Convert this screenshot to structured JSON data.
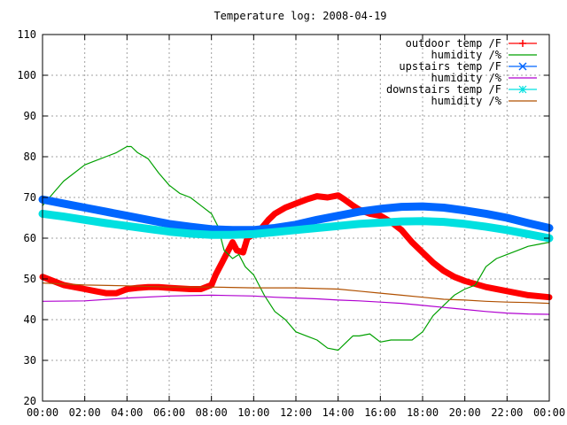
{
  "chart_data": {
    "type": "line",
    "title": "Temperature log: 2008-04-19",
    "xlabel": "",
    "ylabel": "",
    "x_ticks": [
      "00:00",
      "02:00",
      "04:00",
      "06:00",
      "08:00",
      "10:00",
      "12:00",
      "14:00",
      "16:00",
      "18:00",
      "20:00",
      "22:00",
      "00:00"
    ],
    "xlim_hours": [
      0,
      24
    ],
    "ylim": [
      20,
      110
    ],
    "y_ticks": [
      20,
      30,
      40,
      50,
      60,
      70,
      80,
      90,
      100,
      110
    ],
    "grid": true,
    "legend_position": "top-right",
    "series": [
      {
        "name": "outdoor temp /F",
        "color": "#ff0000",
        "marker": "plus",
        "points": [
          [
            0,
            50.5
          ],
          [
            0.5,
            49.5
          ],
          [
            1,
            48.5
          ],
          [
            1.5,
            48
          ],
          [
            2,
            47.5
          ],
          [
            2.5,
            47
          ],
          [
            3,
            46.5
          ],
          [
            3.5,
            46.5
          ],
          [
            4,
            47.5
          ],
          [
            4.5,
            47.8
          ],
          [
            5,
            48
          ],
          [
            5.5,
            48
          ],
          [
            6,
            47.8
          ],
          [
            7,
            47.5
          ],
          [
            7.5,
            47.5
          ],
          [
            8,
            48.5
          ],
          [
            8.2,
            51
          ],
          [
            8.5,
            54
          ],
          [
            8.8,
            57
          ],
          [
            9,
            59
          ],
          [
            9.2,
            57
          ],
          [
            9.5,
            56.5
          ],
          [
            9.7,
            60
          ],
          [
            10,
            61
          ],
          [
            10.3,
            62
          ],
          [
            10.7,
            64.5
          ],
          [
            11,
            66
          ],
          [
            11.5,
            67.5
          ],
          [
            12,
            68.5
          ],
          [
            12.5,
            69.5
          ],
          [
            13,
            70.3
          ],
          [
            13.5,
            70
          ],
          [
            14,
            70.5
          ],
          [
            14.3,
            69.5
          ],
          [
            14.7,
            68
          ],
          [
            15,
            67
          ],
          [
            15.5,
            66
          ],
          [
            16,
            65.5
          ],
          [
            16.5,
            64
          ],
          [
            17,
            62
          ],
          [
            17.5,
            59
          ],
          [
            18,
            56.5
          ],
          [
            18.5,
            54
          ],
          [
            19,
            52
          ],
          [
            19.5,
            50.5
          ],
          [
            20,
            49.5
          ],
          [
            21,
            48
          ],
          [
            22,
            47
          ],
          [
            23,
            46
          ],
          [
            24,
            45.5
          ]
        ]
      },
      {
        "name": "humidity /%",
        "color": "#00a000",
        "marker": "none",
        "points": [
          [
            0,
            68
          ],
          [
            0.5,
            71
          ],
          [
            1,
            74
          ],
          [
            1.5,
            76
          ],
          [
            2,
            78
          ],
          [
            2.5,
            79
          ],
          [
            3,
            80
          ],
          [
            3.5,
            81
          ],
          [
            4,
            82.5
          ],
          [
            4.2,
            82.5
          ],
          [
            4.5,
            81
          ],
          [
            5,
            79.5
          ],
          [
            5.5,
            76
          ],
          [
            6,
            73
          ],
          [
            6.5,
            71
          ],
          [
            7,
            70
          ],
          [
            7.5,
            68
          ],
          [
            8,
            66
          ],
          [
            8.3,
            63
          ],
          [
            8.6,
            57
          ],
          [
            9,
            55
          ],
          [
            9.3,
            56
          ],
          [
            9.6,
            53
          ],
          [
            10,
            51
          ],
          [
            10.5,
            46
          ],
          [
            11,
            42
          ],
          [
            11.5,
            40
          ],
          [
            12,
            37
          ],
          [
            12.5,
            36
          ],
          [
            13,
            35
          ],
          [
            13.5,
            33
          ],
          [
            14,
            32.5
          ],
          [
            14.3,
            34
          ],
          [
            14.7,
            36
          ],
          [
            15,
            36
          ],
          [
            15.5,
            36.5
          ],
          [
            16,
            34.5
          ],
          [
            16.5,
            35
          ],
          [
            17,
            35
          ],
          [
            17.5,
            35
          ],
          [
            18,
            37
          ],
          [
            18.5,
            41
          ],
          [
            19,
            43.5
          ],
          [
            19.5,
            46
          ],
          [
            20,
            47.5
          ],
          [
            20.5,
            48.5
          ],
          [
            21,
            53
          ],
          [
            21.5,
            55
          ],
          [
            22,
            56
          ],
          [
            22.5,
            57
          ],
          [
            23,
            58
          ],
          [
            23.5,
            58.5
          ],
          [
            24,
            59
          ]
        ]
      },
      {
        "name": "upstairs temp /F",
        "color": "#0066ff",
        "marker": "cross",
        "points": [
          [
            0,
            69.5
          ],
          [
            1,
            68.5
          ],
          [
            2,
            67.5
          ],
          [
            3,
            66.5
          ],
          [
            4,
            65.5
          ],
          [
            5,
            64.5
          ],
          [
            6,
            63.5
          ],
          [
            7,
            62.8
          ],
          [
            8,
            62.2
          ],
          [
            9,
            62
          ],
          [
            10,
            62
          ],
          [
            11,
            62.5
          ],
          [
            12,
            63.3
          ],
          [
            13,
            64.5
          ],
          [
            14,
            65.5
          ],
          [
            15,
            66.5
          ],
          [
            16,
            67.2
          ],
          [
            17,
            67.7
          ],
          [
            18,
            67.8
          ],
          [
            19,
            67.5
          ],
          [
            20,
            66.8
          ],
          [
            21,
            66
          ],
          [
            22,
            65
          ],
          [
            23,
            63.7
          ],
          [
            24,
            62.5
          ]
        ]
      },
      {
        "name": "humidity /%",
        "color": "#b000d0",
        "marker": "none",
        "points": [
          [
            0,
            44.5
          ],
          [
            2,
            44.6
          ],
          [
            4,
            45.3
          ],
          [
            6,
            45.8
          ],
          [
            8,
            46
          ],
          [
            10,
            45.8
          ],
          [
            11,
            45.5
          ],
          [
            12,
            45.3
          ],
          [
            13,
            45.1
          ],
          [
            14,
            44.8
          ],
          [
            15,
            44.6
          ],
          [
            16,
            44.3
          ],
          [
            17,
            44
          ],
          [
            18,
            43.5
          ],
          [
            19,
            43
          ],
          [
            20,
            42.5
          ],
          [
            21,
            42
          ],
          [
            22,
            41.6
          ],
          [
            23,
            41.4
          ],
          [
            24,
            41.3
          ]
        ]
      },
      {
        "name": "downstairs temp /F",
        "color": "#00e0e0",
        "marker": "star",
        "points": [
          [
            0,
            66
          ],
          [
            1,
            65.3
          ],
          [
            2,
            64.5
          ],
          [
            3,
            63.7
          ],
          [
            4,
            63
          ],
          [
            5,
            62.3
          ],
          [
            6,
            61.6
          ],
          [
            7,
            61.1
          ],
          [
            8,
            60.8
          ],
          [
            9,
            60.8
          ],
          [
            10,
            61
          ],
          [
            11,
            61.5
          ],
          [
            12,
            62
          ],
          [
            13,
            62.5
          ],
          [
            14,
            63
          ],
          [
            15,
            63.5
          ],
          [
            16,
            63.8
          ],
          [
            17,
            64.1
          ],
          [
            18,
            64.2
          ],
          [
            19,
            64
          ],
          [
            20,
            63.5
          ],
          [
            21,
            62.8
          ],
          [
            22,
            62
          ],
          [
            23,
            61
          ],
          [
            24,
            60
          ]
        ]
      },
      {
        "name": "humidity /%",
        "color": "#b05000",
        "marker": "none",
        "points": [
          [
            0,
            49
          ],
          [
            2,
            48.5
          ],
          [
            4,
            48.3
          ],
          [
            6,
            48
          ],
          [
            8,
            48
          ],
          [
            10,
            47.8
          ],
          [
            12,
            47.8
          ],
          [
            14,
            47.5
          ],
          [
            15,
            47
          ],
          [
            16,
            46.5
          ],
          [
            17,
            46
          ],
          [
            18,
            45.5
          ],
          [
            19,
            45
          ],
          [
            20,
            44.8
          ],
          [
            21,
            44.5
          ],
          [
            22,
            44.3
          ],
          [
            23,
            44.2
          ],
          [
            24,
            44
          ]
        ]
      }
    ]
  }
}
